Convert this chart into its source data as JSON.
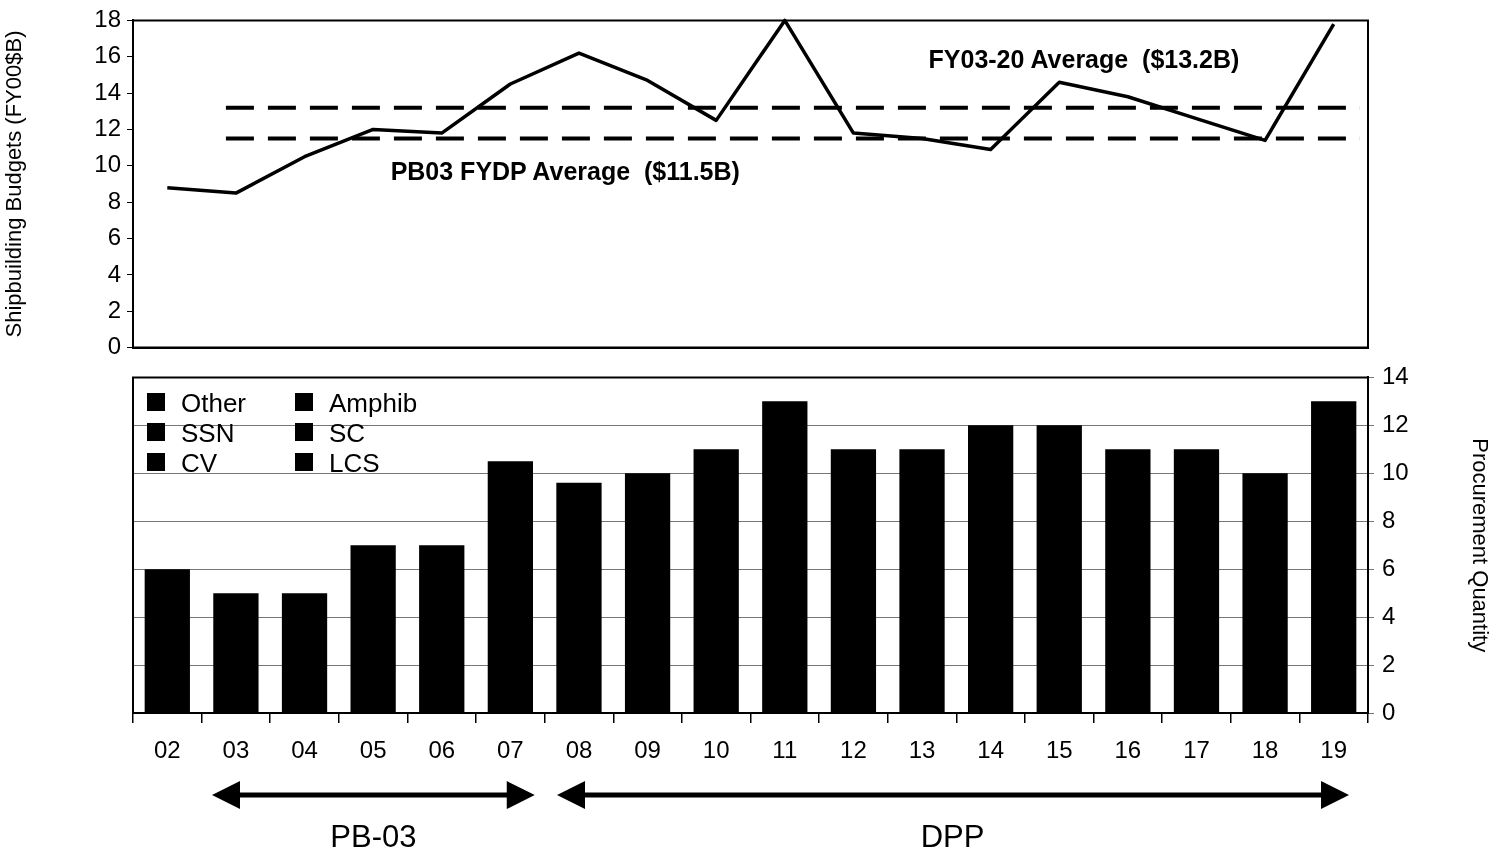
{
  "chart_data": [
    {
      "type": "line",
      "categories": [
        "02",
        "03",
        "04",
        "05",
        "06",
        "07",
        "08",
        "09",
        "10",
        "11",
        "12",
        "13",
        "14",
        "15",
        "16",
        "17",
        "18",
        "19"
      ],
      "series": [
        {
          "color": "#000000",
          "values": [
            8.8,
            8.5,
            10.5,
            12.0,
            11.8,
            14.5,
            16.2,
            14.7,
            12.5,
            18,
            11.8,
            11.5,
            10.9,
            14.6,
            13.8,
            12.6,
            11.4,
            17.8
          ]
        }
      ],
      "ylabel": "Shipbuilding Budgets (FY00$B)",
      "ylim": [
        0,
        18
      ],
      "yticks": [
        0,
        2,
        4,
        6,
        8,
        10,
        12,
        14,
        16,
        18
      ],
      "tick_labels": "y",
      "grid": false,
      "legend": false,
      "marker": "none",
      "line_style": "solid",
      "ref_lines": [
        {
          "axis": "y",
          "value": 13.2,
          "label": "FY03-20 Average  ($13.2B)",
          "line_style": "dashed",
          "color": "#000000"
        },
        {
          "axis": "y",
          "value": 11.5,
          "label": "PB03 FYDP Average  ($11.5B)",
          "line_style": "dashed",
          "color": "#000000"
        }
      ]
    },
    {
      "type": "bar",
      "categories": [
        "02",
        "03",
        "04",
        "05",
        "06",
        "07",
        "08",
        "09",
        "10",
        "11",
        "12",
        "13",
        "14",
        "15",
        "16",
        "17",
        "18",
        "19"
      ],
      "values": [
        6,
        5,
        5,
        7,
        7,
        10.5,
        9.6,
        10,
        11,
        13,
        11,
        11,
        12,
        12,
        11,
        11,
        10,
        13
      ],
      "color": "#000000",
      "ylabel": "Procurement Quantity",
      "ylim": [
        0,
        14
      ],
      "yticks": [
        0,
        2,
        4,
        6,
        8,
        10,
        12,
        14
      ],
      "grid": "y",
      "legend": false,
      "annotations": [
        "Other",
        "Amphib",
        "SSN",
        "SC",
        "CV",
        "LCS",
        "PB-03",
        "DPP"
      ]
    }
  ]
}
